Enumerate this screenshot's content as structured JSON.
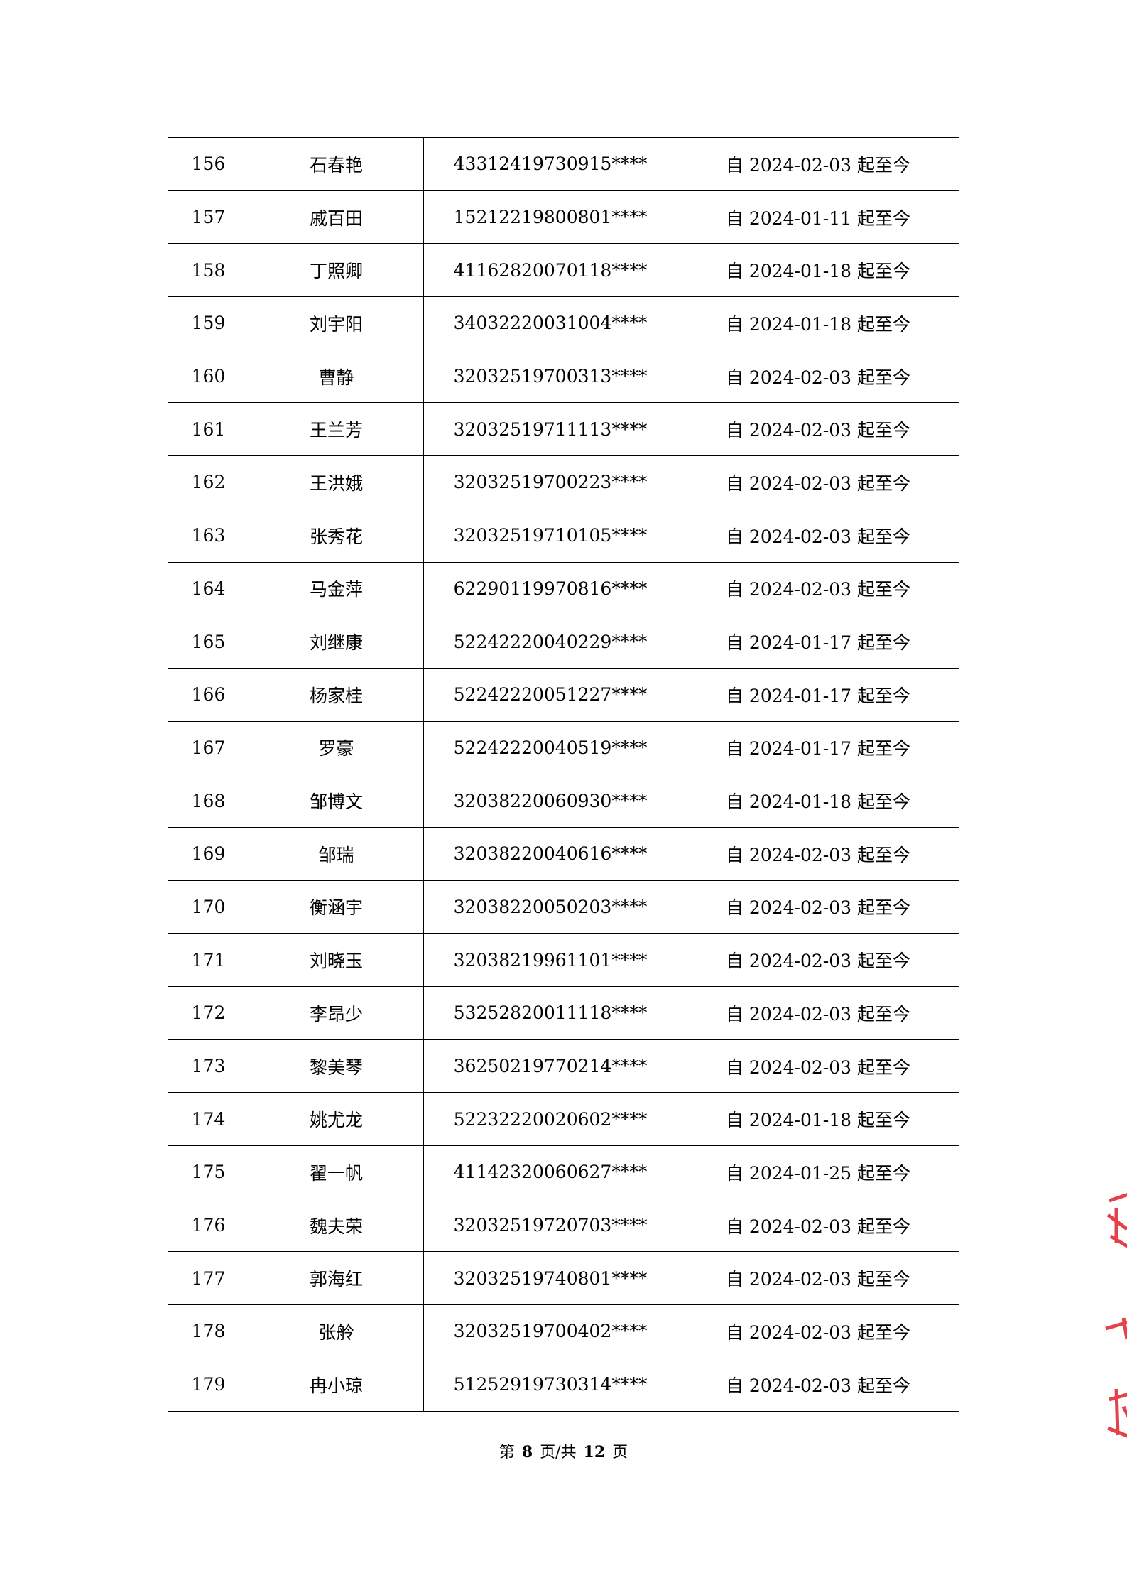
{
  "rows": [
    {
      "no": "156",
      "name": "石春艳",
      "id": "43312419730915****",
      "period": "自 2024-02-03 起至今"
    },
    {
      "no": "157",
      "name": "戚百田",
      "id": "15212219800801****",
      "period": "自 2024-01-11 起至今"
    },
    {
      "no": "158",
      "name": "丁照卿",
      "id": "41162820070118****",
      "period": "自 2024-01-18 起至今"
    },
    {
      "no": "159",
      "name": "刘宇阳",
      "id": "34032220031004****",
      "period": "自 2024-01-18 起至今"
    },
    {
      "no": "160",
      "name": "曹静",
      "id": "32032519700313****",
      "period": "自 2024-02-03 起至今"
    },
    {
      "no": "161",
      "name": "王兰芳",
      "id": "32032519711113****",
      "period": "自 2024-02-03 起至今"
    },
    {
      "no": "162",
      "name": "王洪娥",
      "id": "32032519700223****",
      "period": "自 2024-02-03 起至今"
    },
    {
      "no": "163",
      "name": "张秀花",
      "id": "32032519710105****",
      "period": "自 2024-02-03 起至今"
    },
    {
      "no": "164",
      "name": "马金萍",
      "id": "62290119970816****",
      "period": "自 2024-02-03 起至今"
    },
    {
      "no": "165",
      "name": "刘继康",
      "id": "52242220040229****",
      "period": "自 2024-01-17 起至今"
    },
    {
      "no": "166",
      "name": "杨家桂",
      "id": "52242220051227****",
      "period": "自 2024-01-17 起至今"
    },
    {
      "no": "167",
      "name": "罗豪",
      "id": "52242220040519****",
      "period": "自 2024-01-17 起至今"
    },
    {
      "no": "168",
      "name": "邹博文",
      "id": "32038220060930****",
      "period": "自 2024-01-18 起至今"
    },
    {
      "no": "169",
      "name": "邹瑞",
      "id": "32038220040616****",
      "period": "自 2024-02-03 起至今"
    },
    {
      "no": "170",
      "name": "衡涵宇",
      "id": "32038220050203****",
      "period": "自 2024-02-03 起至今"
    },
    {
      "no": "171",
      "name": "刘晓玉",
      "id": "32038219961101****",
      "period": "自 2024-02-03 起至今"
    },
    {
      "no": "172",
      "name": "李昂少",
      "id": "53252820011118****",
      "period": "自 2024-02-03 起至今"
    },
    {
      "no": "173",
      "name": "黎美琴",
      "id": "36250219770214****",
      "period": "自 2024-02-03 起至今"
    },
    {
      "no": "174",
      "name": "姚尤龙",
      "id": "52232220020602****",
      "period": "自 2024-01-18 起至今"
    },
    {
      "no": "175",
      "name": "翟一帆",
      "id": "41142320060627****",
      "period": "自 2024-01-25 起至今"
    },
    {
      "no": "176",
      "name": "魏夫荣",
      "id": "32032519720703****",
      "period": "自 2024-02-03 起至今"
    },
    {
      "no": "177",
      "name": "郭海红",
      "id": "32032519740801****",
      "period": "自 2024-02-03 起至今"
    },
    {
      "no": "178",
      "name": "张舲",
      "id": "32032519700402****",
      "period": "自 2024-02-03 起至今"
    },
    {
      "no": "179",
      "name": "冉小琼",
      "id": "51252919730314****",
      "period": "自 2024-02-03 起至今"
    }
  ],
  "footer": {
    "prefix": "第",
    "current": "8",
    "middle": "页/共",
    "total": "12",
    "suffix": "页"
  },
  "stamp_color": "#e0202a"
}
